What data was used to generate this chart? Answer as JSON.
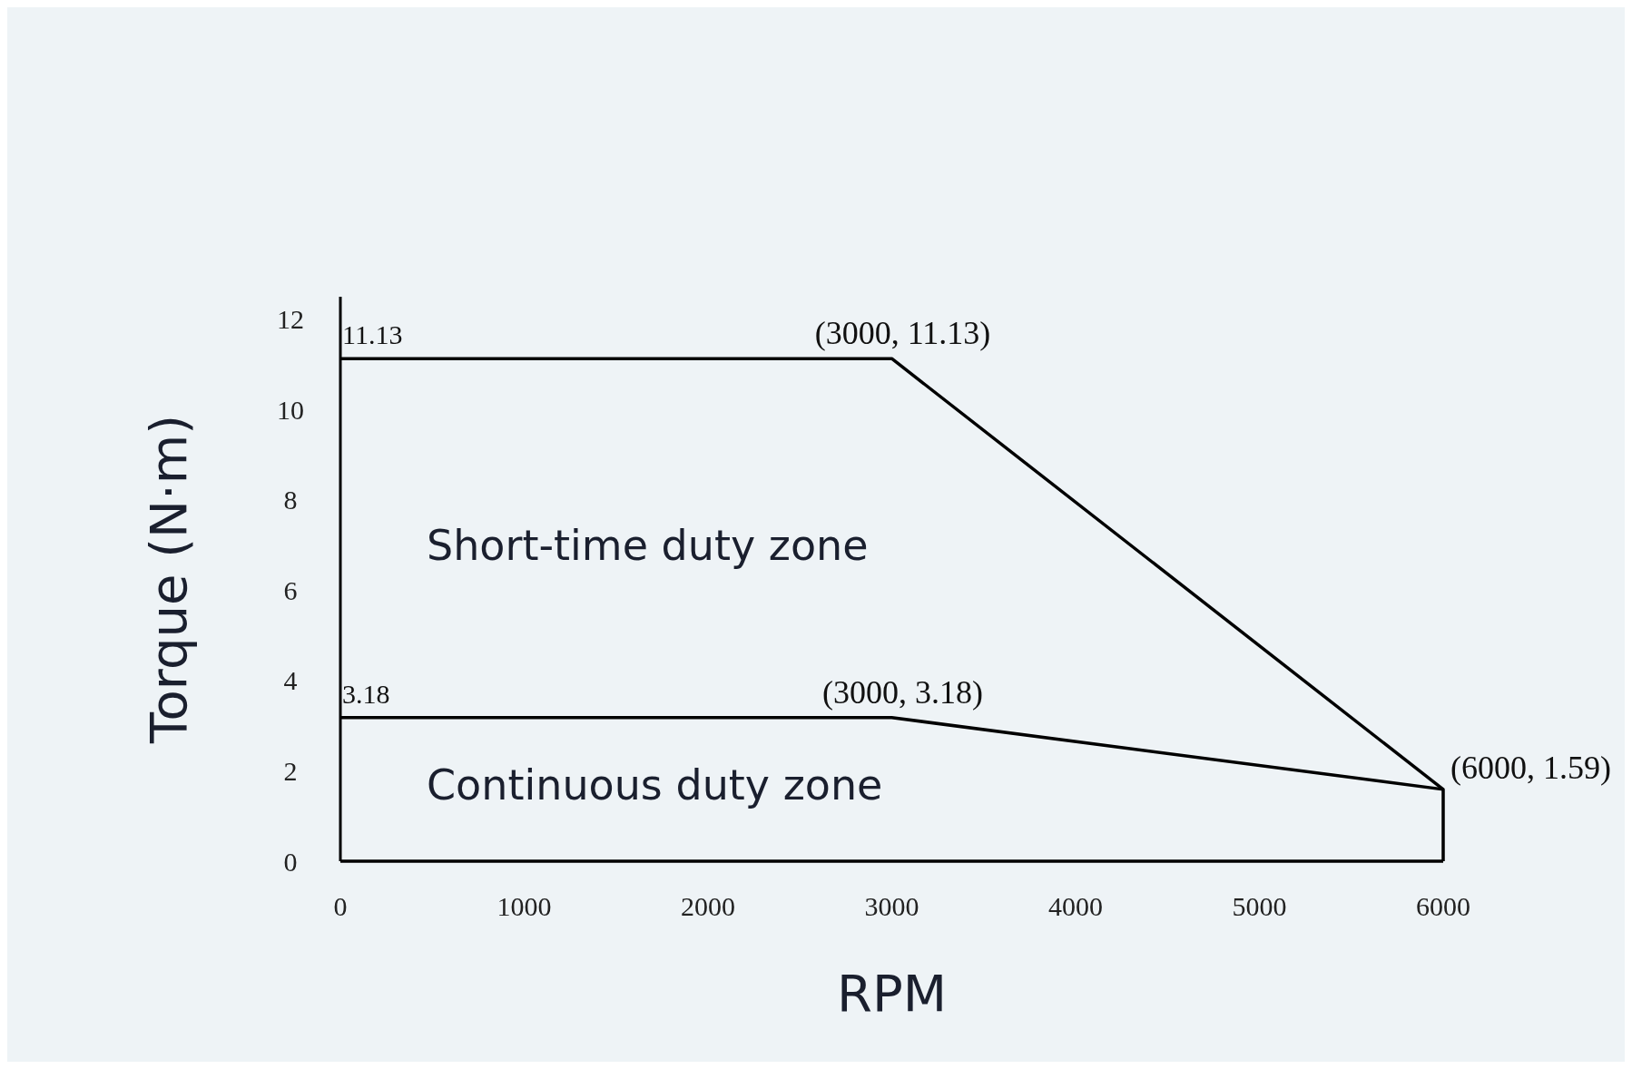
{
  "chart_data": {
    "type": "line",
    "xlabel": "RPM",
    "ylabel": "Torque (N·m)",
    "xlim": [
      0,
      6000
    ],
    "xticks": [
      0,
      1000,
      2000,
      3000,
      4000,
      5000,
      6000
    ],
    "ylim": [
      0,
      12.5
    ],
    "yticks": [
      0,
      2,
      4,
      6,
      8,
      10,
      12
    ],
    "series": [
      {
        "color": "#000000",
        "x": [
          0,
          3000,
          6000,
          6000
        ],
        "values": [
          11.13,
          11.13,
          1.59,
          0
        ]
      },
      {
        "color": "#000000",
        "x": [
          0,
          3000,
          6000
        ],
        "values": [
          3.18,
          3.18,
          1.59
        ]
      }
    ],
    "annotations": [
      {
        "text": "11.13",
        "x": 0,
        "y": 11.13
      },
      {
        "text": "(3000, 11.13)",
        "x": 3000,
        "y": 11.13
      },
      {
        "text": "3.18",
        "x": 0,
        "y": 3.18
      },
      {
        "text": "(3000, 3.18)",
        "x": 3000,
        "y": 3.18
      },
      {
        "text": "(6000, 1.59)",
        "x": 6000,
        "y": 1.59
      },
      "Short-time duty zone",
      "Continuous duty zone"
    ],
    "grid": false,
    "marker": "none",
    "line_style": "solid"
  }
}
